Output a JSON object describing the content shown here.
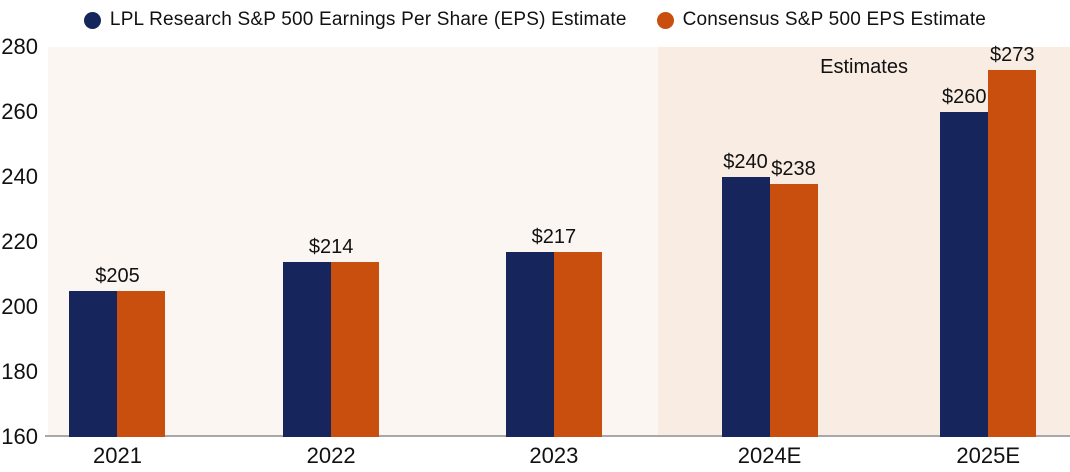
{
  "colors": {
    "lpl_navy": "#16255c",
    "consensus_orange": "#c84f0d",
    "plot_background": "#fcf6f3",
    "estimates_background": "#f8ece3",
    "axis_line": "#a8a8a8",
    "text": "#111111"
  },
  "legend": {
    "items": [
      {
        "label": "LPL Research S&P 500 Earnings Per Share (EPS) Estimate",
        "color": "#16255c"
      },
      {
        "label": "Consensus S&P 500 EPS Estimate",
        "color": "#c84f0d"
      }
    ]
  },
  "chart_data": {
    "type": "bar",
    "title": "",
    "categories": [
      "2021",
      "2022",
      "2023",
      "2024E",
      "2025E"
    ],
    "series": [
      {
        "name": "LPL Research S&P 500 Earnings Per Share (EPS) Estimate",
        "color": "#16255c",
        "values": [
          205,
          214,
          217,
          240,
          260
        ]
      },
      {
        "name": "Consensus S&P 500 EPS Estimate",
        "color": "#c84f0d",
        "values": [
          205,
          214,
          217,
          238,
          273
        ]
      }
    ],
    "bar_labels": [
      {
        "shared": "$205"
      },
      {
        "shared": "$214"
      },
      {
        "shared": "$217"
      },
      {
        "lpl": "$240",
        "consensus": "$238"
      },
      {
        "lpl": "$260",
        "consensus": "$273"
      }
    ],
    "ylim": [
      160,
      280
    ],
    "yticks": [
      280,
      260,
      240,
      220,
      200,
      180,
      160
    ],
    "xlabel": "",
    "ylabel": "",
    "grid": false,
    "legend_position": "top",
    "estimates_region": {
      "label": "Estimates",
      "covers_categories": [
        "2024E",
        "2025E"
      ],
      "start_pct": 59.7
    },
    "group_centers_pct": [
      6.8,
      27.7,
      49.5,
      70.6,
      92.0
    ]
  }
}
